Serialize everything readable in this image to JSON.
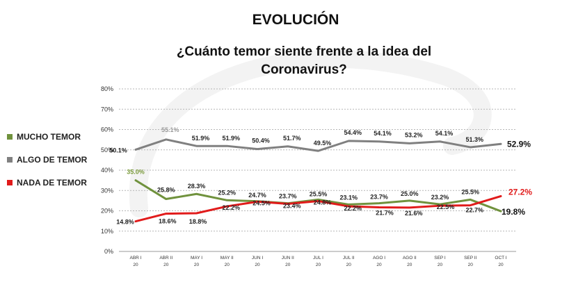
{
  "header": {
    "title": "EVOLUCIÓN",
    "question_line1": "¿Cuánto temor siente frente a la idea del",
    "question_line2": "Coronavirus?"
  },
  "chart_data": {
    "type": "line",
    "categories": [
      [
        "ABR I",
        "20"
      ],
      [
        "ABR II",
        "20"
      ],
      [
        "MAY I",
        "20"
      ],
      [
        "MAY II",
        "20"
      ],
      [
        "JUN I",
        "20"
      ],
      [
        "JUN II",
        "20"
      ],
      [
        "JUL I",
        "20"
      ],
      [
        "JUL II",
        "20"
      ],
      [
        "AGO I",
        "20"
      ],
      [
        "AGO II",
        "20"
      ],
      [
        "SEP I",
        "20"
      ],
      [
        "SEP II",
        "20"
      ],
      [
        "OCT I",
        "20"
      ]
    ],
    "y_ticks": [
      "0%",
      "10%",
      "20%",
      "30%",
      "40%",
      "50%",
      "60%",
      "70%",
      "80%"
    ],
    "ylim": [
      0,
      80
    ],
    "grid": true,
    "legend_position": "left",
    "series": [
      {
        "name": "MUCHO TEMOR",
        "color": "#70923d",
        "label_color": "#7a9a3a",
        "values": [
          35.0,
          25.8,
          28.3,
          25.2,
          24.7,
          23.7,
          25.5,
          23.1,
          23.7,
          25.0,
          23.2,
          25.5,
          19.8
        ],
        "labels": [
          "35.0%",
          "25.8%",
          "28.3%",
          "25.2%",
          "24.7%",
          "23.7%",
          "25.5%",
          "23.1%",
          "23.7%",
          "25.0%",
          "23.2%",
          "25.5%",
          "19.8%"
        ]
      },
      {
        "name": "ALGO DE TEMOR",
        "color": "#808080",
        "label_color": "#9a9a9a",
        "values": [
          50.1,
          55.1,
          51.9,
          51.9,
          50.4,
          51.7,
          49.5,
          54.4,
          54.1,
          53.2,
          54.1,
          51.3,
          52.9
        ],
        "labels": [
          "50.1%",
          "55.1%",
          "51.9%",
          "51.9%",
          "50.4%",
          "51.7%",
          "49.5%",
          "54.4%",
          "54.1%",
          "53.2%",
          "54.1%",
          "51.3%",
          "52.9%"
        ]
      },
      {
        "name": "NADA DE TEMOR",
        "color": "#e11b1b",
        "label_color": "#e11b1b",
        "values": [
          14.8,
          18.6,
          18.8,
          22.2,
          24.5,
          23.4,
          24.8,
          22.2,
          21.7,
          21.6,
          22.5,
          22.7,
          27.2
        ],
        "labels": [
          "14.8%",
          "18.6%",
          "18.8%",
          "22.2%",
          "24.5%",
          "23.4%",
          "24.8%",
          "22.2%",
          "21.7%",
          "21.6%",
          "22.5%",
          "22.7%",
          "27.2%"
        ]
      }
    ]
  }
}
